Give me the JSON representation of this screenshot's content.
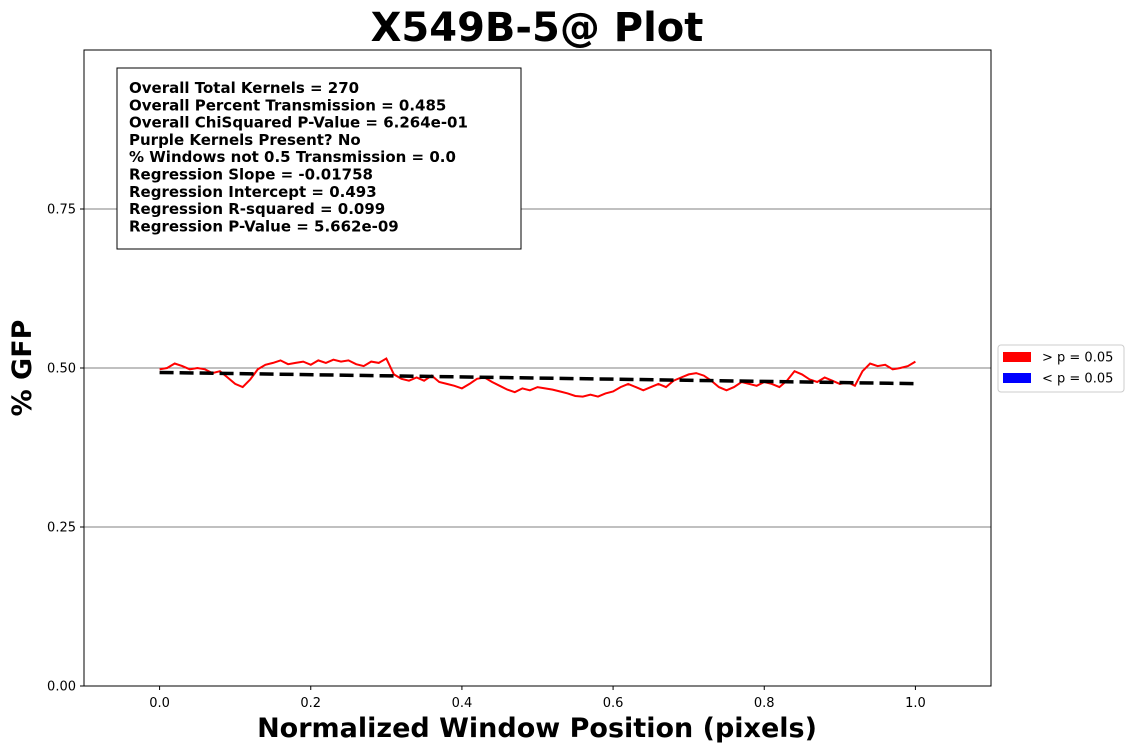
{
  "chart_data": {
    "type": "line",
    "title": "X549B-5@ Plot",
    "xlabel": "Normalized Window Position (pixels)",
    "ylabel": "% GFP",
    "xlim": [
      -0.1,
      1.1
    ],
    "ylim": [
      0.0,
      1.0
    ],
    "xticks": [
      0.0,
      0.2,
      0.4,
      0.6,
      0.8,
      1.0
    ],
    "xtick_labels": [
      "0.0",
      "0.2",
      "0.4",
      "0.6",
      "0.8",
      "1.0"
    ],
    "yticks": [
      0.0,
      0.25,
      0.5,
      0.75
    ],
    "ytick_labels": [
      "0.00",
      "0.25",
      "0.50",
      "0.75"
    ],
    "grid": "horizontal",
    "series": [
      {
        "color": "#ff0000",
        "x": [
          0.0,
          0.01,
          0.02,
          0.03,
          0.04,
          0.05,
          0.06,
          0.07,
          0.08,
          0.09,
          0.1,
          0.11,
          0.12,
          0.13,
          0.14,
          0.15,
          0.16,
          0.17,
          0.18,
          0.19,
          0.2,
          0.21,
          0.22,
          0.23,
          0.24,
          0.25,
          0.26,
          0.27,
          0.28,
          0.29,
          0.3,
          0.31,
          0.32,
          0.33,
          0.34,
          0.35,
          0.36,
          0.37,
          0.38,
          0.39,
          0.4,
          0.41,
          0.42,
          0.43,
          0.44,
          0.45,
          0.46,
          0.47,
          0.48,
          0.49,
          0.5,
          0.51,
          0.52,
          0.53,
          0.54,
          0.55,
          0.56,
          0.57,
          0.58,
          0.59,
          0.6,
          0.61,
          0.62,
          0.63,
          0.64,
          0.65,
          0.66,
          0.67,
          0.68,
          0.69,
          0.7,
          0.71,
          0.72,
          0.73,
          0.74,
          0.75,
          0.76,
          0.77,
          0.78,
          0.79,
          0.8,
          0.81,
          0.82,
          0.83,
          0.84,
          0.85,
          0.86,
          0.87,
          0.88,
          0.89,
          0.9,
          0.91,
          0.92,
          0.93,
          0.94,
          0.95,
          0.96,
          0.97,
          0.98,
          0.99,
          1.0
        ],
        "y": [
          0.498,
          0.5,
          0.507,
          0.503,
          0.498,
          0.5,
          0.498,
          0.492,
          0.495,
          0.485,
          0.475,
          0.47,
          0.482,
          0.498,
          0.505,
          0.508,
          0.512,
          0.506,
          0.508,
          0.51,
          0.505,
          0.512,
          0.508,
          0.513,
          0.51,
          0.512,
          0.506,
          0.503,
          0.51,
          0.508,
          0.515,
          0.49,
          0.483,
          0.48,
          0.485,
          0.48,
          0.488,
          0.478,
          0.475,
          0.472,
          0.468,
          0.475,
          0.483,
          0.485,
          0.478,
          0.472,
          0.466,
          0.462,
          0.468,
          0.465,
          0.47,
          0.468,
          0.466,
          0.463,
          0.46,
          0.456,
          0.455,
          0.458,
          0.455,
          0.46,
          0.463,
          0.47,
          0.475,
          0.47,
          0.465,
          0.47,
          0.475,
          0.47,
          0.48,
          0.485,
          0.49,
          0.492,
          0.488,
          0.48,
          0.47,
          0.465,
          0.47,
          0.478,
          0.475,
          0.472,
          0.478,
          0.475,
          0.47,
          0.48,
          0.495,
          0.49,
          0.482,
          0.478,
          0.485,
          0.48,
          0.475,
          0.478,
          0.472,
          0.495,
          0.507,
          0.503,
          0.505,
          0.498,
          0.5,
          0.503,
          0.51
        ]
      }
    ],
    "regression_line": {
      "color": "#000000",
      "style": "dashed",
      "x": [
        0.0,
        1.0
      ],
      "y": [
        0.493,
        0.4754
      ]
    },
    "stats": [
      "Overall Total Kernels = 270",
      "Overall Percent Transmission = 0.485",
      "Overall ChiSquared P-Value = 6.264e-01",
      "Purple Kernels Present? No",
      "% Windows not 0.5 Transmission = 0.0",
      "Regression Slope = -0.01758",
      "Regression Intercept = 0.493",
      "Regression R-squared = 0.099",
      "Regression P-Value = 5.662e-09"
    ],
    "legend": {
      "placement": "right",
      "entries": [
        {
          "label": "> p = 0.05",
          "color": "#ff0000"
        },
        {
          "label": "< p = 0.05",
          "color": "#0000ff"
        }
      ]
    }
  }
}
